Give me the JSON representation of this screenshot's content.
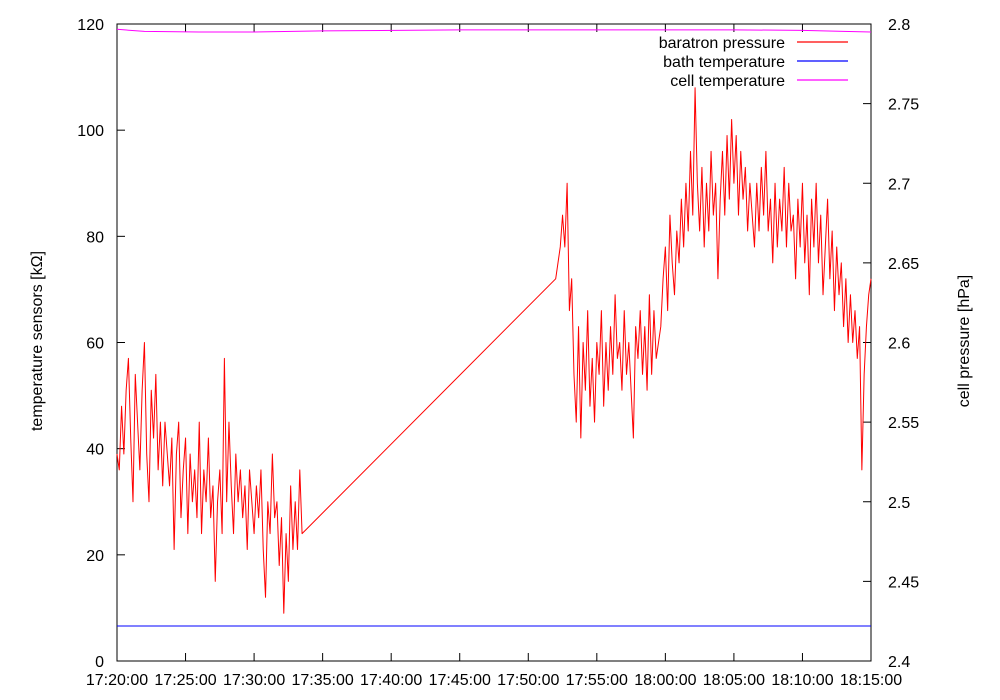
{
  "chart_data": {
    "type": "line",
    "xlabel": "",
    "ylabel": "temperature sensors [kΩ]",
    "y2label": "cell pressure [hPa]",
    "xlim": [
      "17:20:00",
      "18:15:00"
    ],
    "ylim": [
      0,
      120
    ],
    "y2lim": [
      2.4,
      2.8
    ],
    "x_ticks": [
      "17:20:00",
      "17:25:00",
      "17:30:00",
      "17:35:00",
      "17:40:00",
      "17:45:00",
      "17:50:00",
      "17:55:00",
      "18:00:00",
      "18:05:00",
      "18:10:00",
      "18:15:00"
    ],
    "y_ticks": [
      "0",
      "20",
      "40",
      "60",
      "80",
      "100",
      "120"
    ],
    "y2_ticks": [
      "2.4",
      "2.45",
      "2.5",
      "2.55",
      "2.6",
      "2.65",
      "2.7",
      "2.75",
      "2.8"
    ],
    "grid": false,
    "legend_position": "top-right",
    "series": [
      {
        "name": "baratron pressure",
        "axis": "y2",
        "color": "#ff0000",
        "points": [
          [
            "17:20:00",
            2.53
          ],
          [
            "17:20:10",
            2.52
          ],
          [
            "17:20:20",
            2.56
          ],
          [
            "17:20:30",
            2.53
          ],
          [
            "17:20:40",
            2.57
          ],
          [
            "17:20:50",
            2.59
          ],
          [
            "17:21:00",
            2.54
          ],
          [
            "17:21:10",
            2.5
          ],
          [
            "17:21:20",
            2.58
          ],
          [
            "17:21:30",
            2.55
          ],
          [
            "17:21:40",
            2.52
          ],
          [
            "17:21:50",
            2.57
          ],
          [
            "17:22:00",
            2.6
          ],
          [
            "17:22:10",
            2.53
          ],
          [
            "17:22:20",
            2.5
          ],
          [
            "17:22:30",
            2.57
          ],
          [
            "17:22:40",
            2.54
          ],
          [
            "17:22:50",
            2.58
          ],
          [
            "17:23:00",
            2.52
          ],
          [
            "17:23:10",
            2.55
          ],
          [
            "17:23:20",
            2.51
          ],
          [
            "17:23:30",
            2.55
          ],
          [
            "17:23:40",
            2.53
          ],
          [
            "17:23:50",
            2.51
          ],
          [
            "17:24:00",
            2.54
          ],
          [
            "17:24:10",
            2.47
          ],
          [
            "17:24:20",
            2.53
          ],
          [
            "17:24:30",
            2.55
          ],
          [
            "17:24:40",
            2.49
          ],
          [
            "17:24:50",
            2.52
          ],
          [
            "17:25:00",
            2.54
          ],
          [
            "17:25:10",
            2.48
          ],
          [
            "17:25:20",
            2.53
          ],
          [
            "17:25:30",
            2.5
          ],
          [
            "17:25:40",
            2.52
          ],
          [
            "17:25:50",
            2.49
          ],
          [
            "17:26:00",
            2.55
          ],
          [
            "17:26:10",
            2.48
          ],
          [
            "17:26:20",
            2.52
          ],
          [
            "17:26:30",
            2.5
          ],
          [
            "17:26:40",
            2.54
          ],
          [
            "17:26:50",
            2.49
          ],
          [
            "17:27:00",
            2.51
          ],
          [
            "17:27:10",
            2.45
          ],
          [
            "17:27:20",
            2.5
          ],
          [
            "17:27:30",
            2.52
          ],
          [
            "17:27:40",
            2.48
          ],
          [
            "17:27:50",
            2.59
          ],
          [
            "17:28:00",
            2.5
          ],
          [
            "17:28:10",
            2.55
          ],
          [
            "17:28:20",
            2.51
          ],
          [
            "17:28:30",
            2.48
          ],
          [
            "17:28:40",
            2.53
          ],
          [
            "17:28:50",
            2.5
          ],
          [
            "17:29:00",
            2.52
          ],
          [
            "17:29:10",
            2.49
          ],
          [
            "17:29:20",
            2.51
          ],
          [
            "17:29:30",
            2.47
          ],
          [
            "17:29:40",
            2.52
          ],
          [
            "17:29:50",
            2.5
          ],
          [
            "17:30:00",
            2.48
          ],
          [
            "17:30:10",
            2.51
          ],
          [
            "17:30:20",
            2.49
          ],
          [
            "17:30:30",
            2.52
          ],
          [
            "17:30:40",
            2.47
          ],
          [
            "17:30:50",
            2.44
          ],
          [
            "17:31:00",
            2.5
          ],
          [
            "17:31:10",
            2.48
          ],
          [
            "17:31:20",
            2.53
          ],
          [
            "17:31:30",
            2.49
          ],
          [
            "17:31:40",
            2.5
          ],
          [
            "17:31:50",
            2.46
          ],
          [
            "17:32:00",
            2.49
          ],
          [
            "17:32:10",
            2.43
          ],
          [
            "17:32:20",
            2.48
          ],
          [
            "17:32:30",
            2.45
          ],
          [
            "17:32:40",
            2.51
          ],
          [
            "17:32:50",
            2.47
          ],
          [
            "17:33:00",
            2.5
          ],
          [
            "17:33:10",
            2.47
          ],
          [
            "17:33:20",
            2.52
          ],
          [
            "17:33:30",
            2.48
          ],
          [
            "17:52:00",
            2.64
          ],
          [
            "17:52:10",
            2.65
          ],
          [
            "17:52:20",
            2.66
          ],
          [
            "17:52:30",
            2.68
          ],
          [
            "17:52:40",
            2.66
          ],
          [
            "17:52:50",
            2.7
          ],
          [
            "17:53:00",
            2.62
          ],
          [
            "17:53:10",
            2.64
          ],
          [
            "17:53:20",
            2.58
          ],
          [
            "17:53:30",
            2.55
          ],
          [
            "17:53:40",
            2.61
          ],
          [
            "17:53:50",
            2.54
          ],
          [
            "17:54:00",
            2.6
          ],
          [
            "17:54:10",
            2.57
          ],
          [
            "17:54:20",
            2.62
          ],
          [
            "17:54:30",
            2.56
          ],
          [
            "17:54:40",
            2.59
          ],
          [
            "17:54:50",
            2.55
          ],
          [
            "17:55:00",
            2.6
          ],
          [
            "17:55:10",
            2.58
          ],
          [
            "17:55:20",
            2.62
          ],
          [
            "17:55:30",
            2.56
          ],
          [
            "17:55:40",
            2.6
          ],
          [
            "17:55:50",
            2.57
          ],
          [
            "17:56:00",
            2.61
          ],
          [
            "17:56:10",
            2.58
          ],
          [
            "17:56:20",
            2.63
          ],
          [
            "17:56:30",
            2.59
          ],
          [
            "17:56:40",
            2.6
          ],
          [
            "17:56:50",
            2.57
          ],
          [
            "17:57:00",
            2.62
          ],
          [
            "17:57:10",
            2.58
          ],
          [
            "17:57:20",
            2.6
          ],
          [
            "17:57:30",
            2.57
          ],
          [
            "17:57:40",
            2.54
          ],
          [
            "17:57:50",
            2.61
          ],
          [
            "17:58:00",
            2.59
          ],
          [
            "17:58:10",
            2.62
          ],
          [
            "17:58:20",
            2.58
          ],
          [
            "17:58:30",
            2.61
          ],
          [
            "17:58:40",
            2.57
          ],
          [
            "17:58:50",
            2.63
          ],
          [
            "17:59:00",
            2.58
          ],
          [
            "17:59:10",
            2.62
          ],
          [
            "17:59:20",
            2.59
          ],
          [
            "17:59:30",
            2.6
          ],
          [
            "17:59:40",
            2.61
          ],
          [
            "17:59:50",
            2.64
          ],
          [
            "18:00:00",
            2.66
          ],
          [
            "18:00:10",
            2.62
          ],
          [
            "18:00:20",
            2.68
          ],
          [
            "18:00:30",
            2.65
          ],
          [
            "18:00:40",
            2.63
          ],
          [
            "18:00:50",
            2.67
          ],
          [
            "18:01:00",
            2.65
          ],
          [
            "18:01:10",
            2.69
          ],
          [
            "18:01:20",
            2.66
          ],
          [
            "18:01:30",
            2.7
          ],
          [
            "18:01:40",
            2.67
          ],
          [
            "18:01:50",
            2.72
          ],
          [
            "18:02:00",
            2.68
          ],
          [
            "18:02:10",
            2.76
          ],
          [
            "18:02:20",
            2.7
          ],
          [
            "18:02:30",
            2.67
          ],
          [
            "18:02:40",
            2.71
          ],
          [
            "18:02:50",
            2.66
          ],
          [
            "18:03:00",
            2.7
          ],
          [
            "18:03:10",
            2.67
          ],
          [
            "18:03:20",
            2.72
          ],
          [
            "18:03:30",
            2.68
          ],
          [
            "18:03:40",
            2.7
          ],
          [
            "18:03:50",
            2.64
          ],
          [
            "18:04:00",
            2.69
          ],
          [
            "18:04:10",
            2.72
          ],
          [
            "18:04:20",
            2.68
          ],
          [
            "18:04:30",
            2.73
          ],
          [
            "18:04:40",
            2.69
          ],
          [
            "18:04:50",
            2.74
          ],
          [
            "18:05:00",
            2.7
          ],
          [
            "18:05:10",
            2.73
          ],
          [
            "18:05:20",
            2.68
          ],
          [
            "18:05:30",
            2.72
          ],
          [
            "18:05:40",
            2.69
          ],
          [
            "18:05:50",
            2.71
          ],
          [
            "18:06:00",
            2.67
          ],
          [
            "18:06:10",
            2.7
          ],
          [
            "18:06:20",
            2.68
          ],
          [
            "18:06:30",
            2.66
          ],
          [
            "18:06:40",
            2.7
          ],
          [
            "18:06:50",
            2.67
          ],
          [
            "18:07:00",
            2.71
          ],
          [
            "18:07:10",
            2.68
          ],
          [
            "18:07:20",
            2.72
          ],
          [
            "18:07:30",
            2.67
          ],
          [
            "18:07:40",
            2.69
          ],
          [
            "18:07:50",
            2.65
          ],
          [
            "18:08:00",
            2.7
          ],
          [
            "18:08:10",
            2.66
          ],
          [
            "18:08:20",
            2.69
          ],
          [
            "18:08:30",
            2.67
          ],
          [
            "18:08:40",
            2.71
          ],
          [
            "18:08:50",
            2.66
          ],
          [
            "18:09:00",
            2.7
          ],
          [
            "18:09:10",
            2.67
          ],
          [
            "18:09:20",
            2.68
          ],
          [
            "18:09:30",
            2.64
          ],
          [
            "18:09:40",
            2.69
          ],
          [
            "18:09:50",
            2.66
          ],
          [
            "18:10:00",
            2.7
          ],
          [
            "18:10:10",
            2.65
          ],
          [
            "18:10:20",
            2.68
          ],
          [
            "18:10:30",
            2.63
          ],
          [
            "18:10:40",
            2.69
          ],
          [
            "18:10:50",
            2.66
          ],
          [
            "18:11:00",
            2.7
          ],
          [
            "18:11:10",
            2.65
          ],
          [
            "18:11:20",
            2.68
          ],
          [
            "18:11:30",
            2.63
          ],
          [
            "18:11:40",
            2.66
          ],
          [
            "18:11:50",
            2.69
          ],
          [
            "18:12:00",
            2.64
          ],
          [
            "18:12:10",
            2.67
          ],
          [
            "18:12:20",
            2.62
          ],
          [
            "18:12:30",
            2.66
          ],
          [
            "18:12:40",
            2.63
          ],
          [
            "18:12:50",
            2.65
          ],
          [
            "18:13:00",
            2.61
          ],
          [
            "18:13:10",
            2.64
          ],
          [
            "18:13:20",
            2.6
          ],
          [
            "18:13:30",
            2.63
          ],
          [
            "18:13:40",
            2.6
          ],
          [
            "18:13:50",
            2.62
          ],
          [
            "18:14:00",
            2.59
          ],
          [
            "18:14:10",
            2.61
          ],
          [
            "18:14:20",
            2.52
          ],
          [
            "18:14:30",
            2.58
          ],
          [
            "18:14:40",
            2.61
          ],
          [
            "18:14:50",
            2.63
          ],
          [
            "18:15:00",
            2.64
          ]
        ]
      },
      {
        "name": "bath temperature",
        "axis": "y",
        "color": "#0000ff",
        "points": [
          [
            "17:20:00",
            6.6
          ],
          [
            "18:15:00",
            6.6
          ]
        ]
      },
      {
        "name": "cell temperature",
        "axis": "y",
        "color": "#ff00ff",
        "points": [
          [
            "17:20:00",
            119.0
          ],
          [
            "17:22:00",
            118.6
          ],
          [
            "17:26:00",
            118.5
          ],
          [
            "17:30:00",
            118.5
          ],
          [
            "17:35:00",
            118.7
          ],
          [
            "17:45:00",
            118.9
          ],
          [
            "17:55:00",
            118.9
          ],
          [
            "18:05:00",
            118.9
          ],
          [
            "18:10:00",
            118.8
          ],
          [
            "18:13:00",
            118.6
          ],
          [
            "18:15:00",
            118.5
          ]
        ]
      }
    ]
  }
}
